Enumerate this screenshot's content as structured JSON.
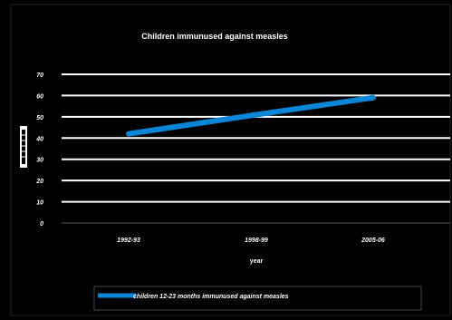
{
  "chart_data": {
    "type": "line",
    "title": "Children immunused against measles",
    "xlabel": "year",
    "ylabel": "",
    "categories": [
      "1992-93",
      "1998-99",
      "2005-06"
    ],
    "series": [
      {
        "name": "children 12-23 months immunused against measles",
        "values": [
          42,
          51,
          59
        ],
        "color": "#0b85d6"
      }
    ],
    "ylim": [
      0,
      70
    ],
    "yticks": [
      "0",
      "10",
      "20",
      "30",
      "40",
      "50",
      "60",
      "70"
    ],
    "grid": true,
    "legend_position": "bottom",
    "colors": {
      "background": "#000000",
      "gridline": "#ffffff",
      "text": "#ffffff"
    }
  }
}
